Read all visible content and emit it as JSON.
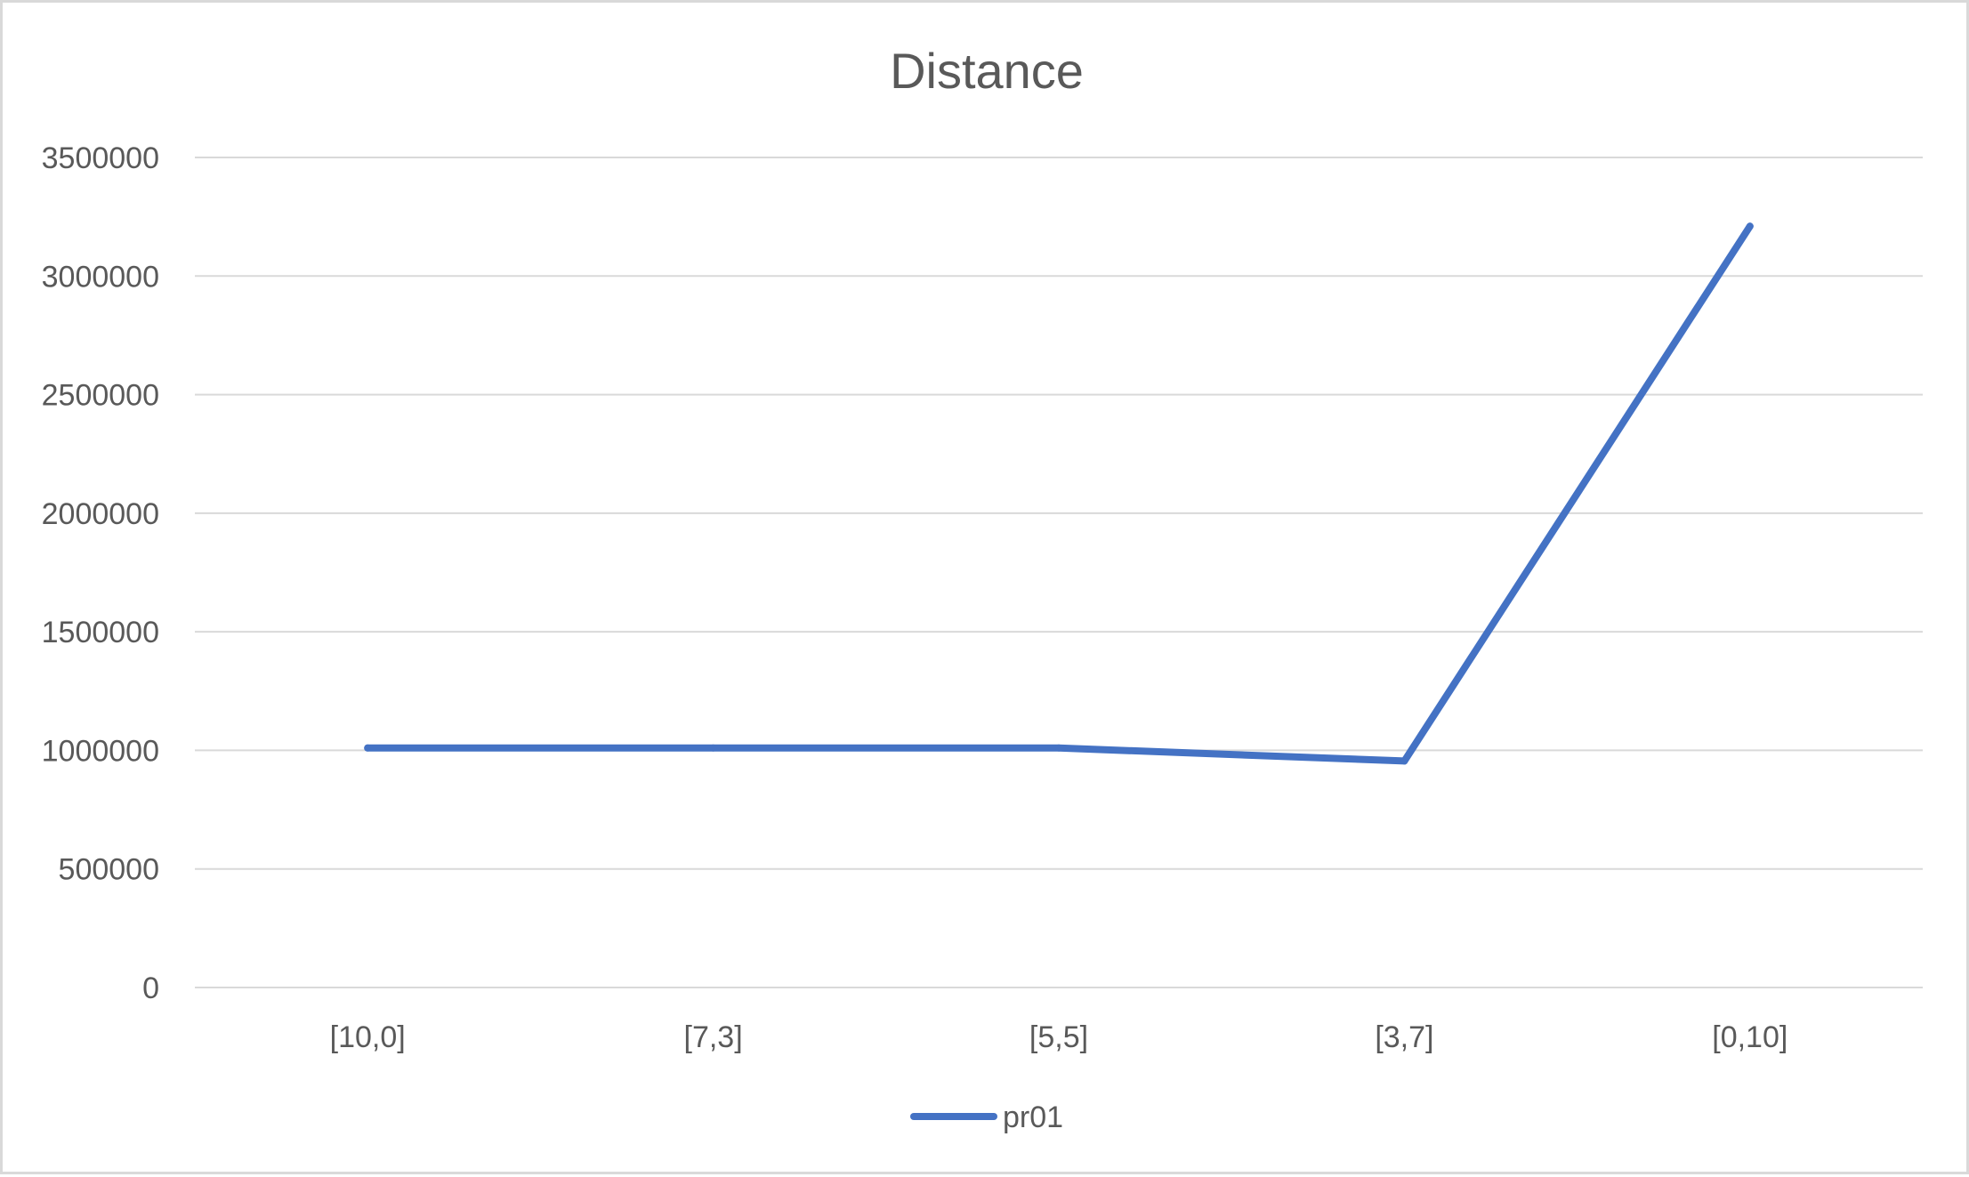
{
  "chart_data": {
    "type": "line",
    "title": "Distance",
    "xlabel": "",
    "ylabel": "",
    "categories": [
      "[10,0]",
      "[7,3]",
      "[5,5]",
      "[3,7]",
      "[0,10]"
    ],
    "series": [
      {
        "name": "pr01",
        "color": "#4472c4",
        "values": [
          1010000,
          1010000,
          1010000,
          955000,
          3210000
        ]
      }
    ],
    "ylim": [
      0,
      3500000
    ],
    "yticks": [
      "0",
      "500000",
      "1000000",
      "1500000",
      "2000000",
      "2500000",
      "3000000",
      "3500000"
    ],
    "grid": true,
    "gridline_color": "#d9d9d9",
    "legend_position": "bottom"
  }
}
